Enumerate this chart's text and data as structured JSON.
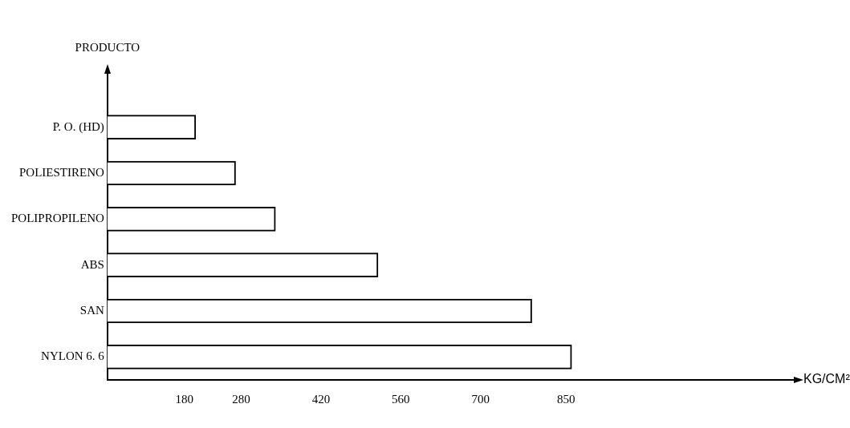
{
  "chart_data": {
    "type": "bar",
    "orientation": "horizontal",
    "categories": [
      "P. O. (HD)",
      "POLIESTIRENO",
      "POLIPROPILENO",
      "ABS",
      "SAN",
      "NYLON 6. 6"
    ],
    "values": [
      200,
      270,
      340,
      520,
      790,
      860
    ],
    "color": "#ffffff",
    "xlim": [
      45,
      1250
    ],
    "xticks": [
      180,
      280,
      420,
      560,
      700,
      850
    ],
    "xlabel": "KG/CM²",
    "ylabel": "PRODUCTO",
    "grid": false,
    "legend": false
  }
}
